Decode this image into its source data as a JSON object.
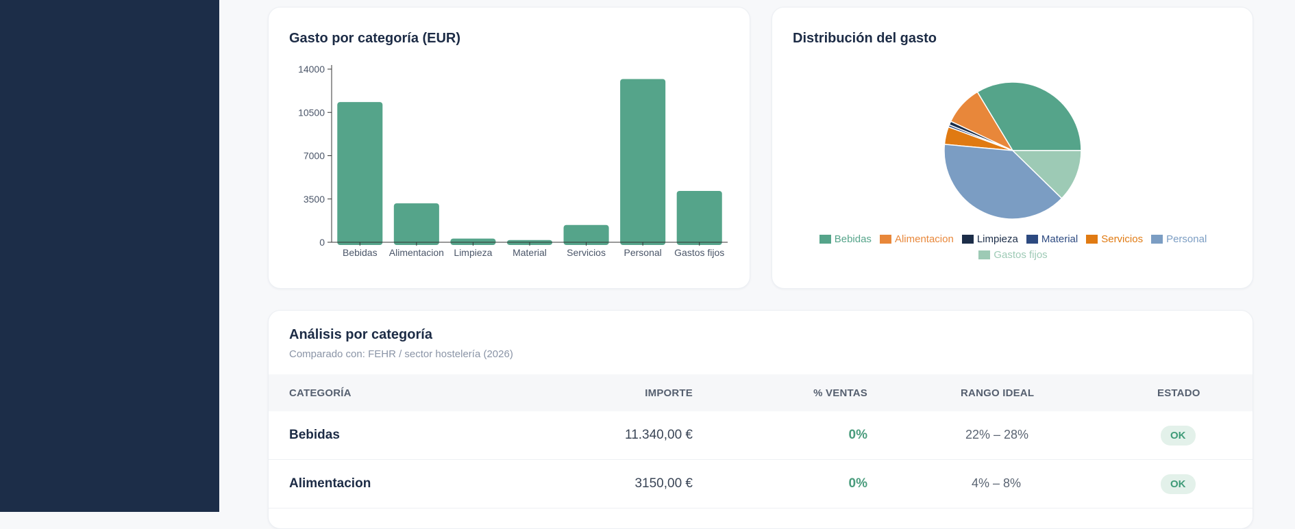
{
  "bar_card": {
    "title": "Gasto por categoría (EUR)"
  },
  "pie_card": {
    "title": "Distribución del gasto"
  },
  "chart_data": [
    {
      "type": "bar",
      "title": "Gasto por categoría (EUR)",
      "categories": [
        "Bebidas",
        "Alimentacion",
        "Limpieza",
        "Material",
        "Servicios",
        "Personal",
        "Gastos fijos"
      ],
      "values": [
        11340,
        3150,
        300,
        180,
        1400,
        13200,
        4150
      ],
      "yticks": [
        "0",
        "3500",
        "7000",
        "10500",
        "14000"
      ],
      "ylim": [
        0,
        14000
      ],
      "color": "#55a48a",
      "grid": false
    },
    {
      "type": "pie",
      "title": "Distribución del gasto",
      "labels": [
        "Bebidas",
        "Alimentacion",
        "Limpieza",
        "Material",
        "Servicios",
        "Personal",
        "Gastos fijos"
      ],
      "values": [
        11340,
        3150,
        300,
        180,
        1400,
        13200,
        4150
      ],
      "colors": [
        "#55a48a",
        "#e8873a",
        "#1c2d48",
        "#2d4a80",
        "#e07a12",
        "#7b9dc3",
        "#9dcab5"
      ],
      "legend": "bottom"
    }
  ],
  "analysis": {
    "title": "Análisis por categoría",
    "subtitle": "Comparado con: FEHR / sector hostelería (2026)",
    "headers": {
      "category": "CATEGORÍA",
      "amount": "IMPORTE",
      "pct_sales": "% VENTAS",
      "ideal_range": "RANGO IDEAL",
      "status": "ESTADO"
    },
    "rows": [
      {
        "category": "Bebidas",
        "amount": "11.340,00 €",
        "pct": "0%",
        "range": "22% – 28%",
        "status": "OK"
      },
      {
        "category": "Alimentacion",
        "amount": "3150,00 €",
        "pct": "0%",
        "range": "4% – 8%",
        "status": "OK"
      }
    ]
  }
}
